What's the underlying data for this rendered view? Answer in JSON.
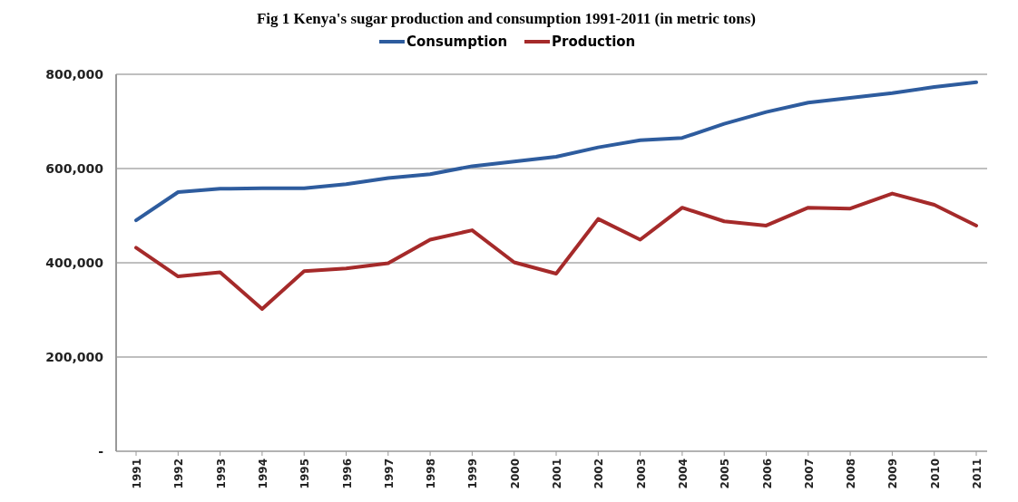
{
  "chart_data": {
    "type": "line",
    "title": "Fig 1 Kenya's sugar production and consumption 1991-2011 (in metric tons)",
    "categories": [
      "1991",
      "1992",
      "1993",
      "1994",
      "1995",
      "1996",
      "1997",
      "1998",
      "1999",
      "2000",
      "2001",
      "2002",
      "2003",
      "2004",
      "2005",
      "2006",
      "2007",
      "2008",
      "2009",
      "2010",
      "2011"
    ],
    "series": [
      {
        "name": "Consumption",
        "color": "#2e5c9e",
        "values": [
          490000,
          550000,
          557000,
          558000,
          558000,
          567000,
          580000,
          588000,
          605000,
          615000,
          625000,
          645000,
          660000,
          665000,
          695000,
          720000,
          740000,
          750000,
          760000,
          773000,
          783000
        ]
      },
      {
        "name": "Production",
        "color": "#a52a2a",
        "values": [
          432000,
          371000,
          380000,
          302000,
          382000,
          388000,
          399000,
          449000,
          469000,
          401000,
          377000,
          493000,
          449000,
          517000,
          488000,
          479000,
          517000,
          515000,
          547000,
          523000,
          479000
        ]
      }
    ],
    "ylim": [
      0,
      800000
    ],
    "yticks": [
      {
        "value": 0,
        "label": "-"
      },
      {
        "value": 200000,
        "label": "200,000"
      },
      {
        "value": 400000,
        "label": "400,000"
      },
      {
        "value": 600000,
        "label": "600,000"
      },
      {
        "value": 800000,
        "label": "800,000"
      }
    ],
    "grid": "y",
    "legend": "top",
    "line_style": "solid",
    "marker": "none"
  }
}
